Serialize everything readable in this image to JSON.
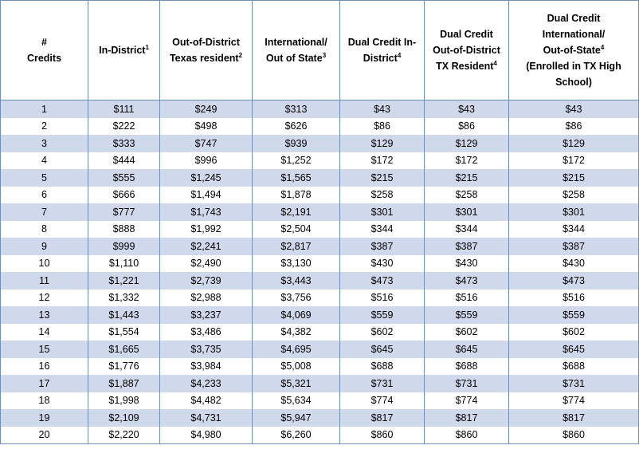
{
  "headers": [
    {
      "lines": [
        "#",
        "Credits"
      ],
      "sup": ""
    },
    {
      "lines": [
        "In-District"
      ],
      "sup": "1"
    },
    {
      "lines": [
        "Out-of-District",
        "Texas resident"
      ],
      "sup": "2"
    },
    {
      "lines": [
        "International/",
        "Out of State"
      ],
      "sup": "3"
    },
    {
      "lines": [
        "Dual Credit In-",
        "District"
      ],
      "sup": "4"
    },
    {
      "lines": [
        "Dual Credit",
        "Out-of-District",
        "TX Resident"
      ],
      "sup": "4"
    },
    {
      "lines": [
        "Dual Credit",
        "International/",
        "Out-of-State",
        "(Enrolled in TX High",
        "School)"
      ],
      "sup": "4",
      "sup_line": 2
    }
  ],
  "rows": [
    [
      "1",
      "$111",
      "$249",
      "$313",
      "$43",
      "$43",
      "$43"
    ],
    [
      "2",
      "$222",
      "$498",
      "$626",
      "$86",
      "$86",
      "$86"
    ],
    [
      "3",
      "$333",
      "$747",
      "$939",
      "$129",
      "$129",
      "$129"
    ],
    [
      "4",
      "$444",
      "$996",
      "$1,252",
      "$172",
      "$172",
      "$172"
    ],
    [
      "5",
      "$555",
      "$1,245",
      "$1,565",
      "$215",
      "$215",
      "$215"
    ],
    [
      "6",
      "$666",
      "$1,494",
      "$1,878",
      "$258",
      "$258",
      "$258"
    ],
    [
      "7",
      "$777",
      "$1,743",
      "$2,191",
      "$301",
      "$301",
      "$301"
    ],
    [
      "8",
      "$888",
      "$1,992",
      "$2,504",
      "$344",
      "$344",
      "$344"
    ],
    [
      "9",
      "$999",
      "$2,241",
      "$2,817",
      "$387",
      "$387",
      "$387"
    ],
    [
      "10",
      "$1,110",
      "$2,490",
      "$3,130",
      "$430",
      "$430",
      "$430"
    ],
    [
      "11",
      "$1,221",
      "$2,739",
      "$3,443",
      "$473",
      "$473",
      "$473"
    ],
    [
      "12",
      "$1,332",
      "$2,988",
      "$3,756",
      "$516",
      "$516",
      "$516"
    ],
    [
      "13",
      "$1,443",
      "$3,237",
      "$4,069",
      "$559",
      "$559",
      "$559"
    ],
    [
      "14",
      "$1,554",
      "$3,486",
      "$4,382",
      "$602",
      "$602",
      "$602"
    ],
    [
      "15",
      "$1,665",
      "$3,735",
      "$4,695",
      "$645",
      "$645",
      "$645"
    ],
    [
      "16",
      "$1,776",
      "$3,984",
      "$5,008",
      "$688",
      "$688",
      "$688"
    ],
    [
      "17",
      "$1,887",
      "$4,233",
      "$5,321",
      "$731",
      "$731",
      "$731"
    ],
    [
      "18",
      "$1,998",
      "$4,482",
      "$5,634",
      "$774",
      "$774",
      "$774"
    ],
    [
      "19",
      "$2,109",
      "$4,731",
      "$5,947",
      "$817",
      "$817",
      "$817"
    ],
    [
      "20",
      "$2,220",
      "$4,980",
      "$6,260",
      "$860",
      "$860",
      "$860"
    ]
  ]
}
